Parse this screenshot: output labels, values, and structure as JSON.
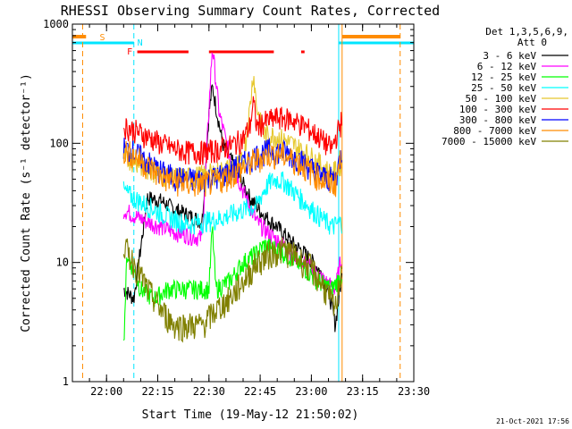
{
  "chart_data": {
    "type": "line",
    "title": "RHESSI Observing Summary Count Rates, Corrected",
    "xlabel": "Start Time (19-May-12 21:50:02)",
    "ylabel": "Corrected Count Rate (s⁻¹ detector⁻¹)",
    "y_scale": "log",
    "ylim": [
      1,
      1000
    ],
    "xlim": [
      "21:50",
      "23:30"
    ],
    "x_ticks": [
      "22:00",
      "22:15",
      "22:30",
      "22:45",
      "23:00",
      "23:15",
      "23:30"
    ],
    "y_ticks": [
      "1",
      "10",
      "100",
      "1000"
    ],
    "grid": false,
    "legend_title": [
      "Det 1,3,5,6,9,",
      "Att 0"
    ],
    "legend_position": "right",
    "footer": "21-Oct-2021 17:56",
    "markers": {
      "S": {
        "label": "S",
        "color": "#ff8c00"
      },
      "N": {
        "label": "N",
        "color": "#00e5ff"
      },
      "F": {
        "label": "F",
        "color": "#ff0000"
      }
    },
    "flag_bars": {
      "saa": {
        "color": "#ff8c00",
        "segments": [
          [
            "21:50",
            "21:54"
          ],
          [
            "23:09",
            "23:26"
          ]
        ]
      },
      "night": {
        "color": "#00e5ff",
        "segments": [
          [
            "21:50",
            "22:08"
          ],
          [
            "23:08",
            "23:30"
          ]
        ]
      },
      "flare": {
        "color": "#ff0000",
        "segments": [
          [
            "22:09",
            "22:24"
          ],
          [
            "22:30",
            "22:49"
          ],
          [
            "22:57",
            "22:58"
          ]
        ]
      }
    },
    "vertical_lines": [
      {
        "time": "21:53",
        "color": "#ff8c00",
        "style": "dashed"
      },
      {
        "time": "22:08",
        "color": "#00e5ff",
        "style": "dashed"
      },
      {
        "time": "23:08",
        "color": "#00e5ff",
        "style": "solid"
      },
      {
        "time": "23:09",
        "color": "#ff8c00",
        "style": "solid"
      },
      {
        "time": "23:26",
        "color": "#ff8c00",
        "style": "dashed"
      }
    ],
    "series": [
      {
        "name": "3 - 6 keV",
        "color": "#000000",
        "x": [
          "22:05",
          "22:08",
          "22:12",
          "22:16",
          "22:20",
          "22:24",
          "22:28",
          "22:30",
          "22:31",
          "22:34",
          "22:38",
          "22:42",
          "22:46",
          "22:50",
          "22:54",
          "22:58",
          "23:02",
          "23:05",
          "23:07",
          "23:09"
        ],
        "y": [
          6,
          5,
          35,
          33,
          28,
          25,
          22,
          180,
          300,
          100,
          60,
          35,
          25,
          20,
          15,
          12,
          9,
          6,
          3,
          8
        ]
      },
      {
        "name": "6 - 12 keV",
        "color": "#ff00ff",
        "x": [
          "22:05",
          "22:08",
          "22:12",
          "22:16",
          "22:20",
          "22:24",
          "22:28",
          "22:30",
          "22:31",
          "22:33",
          "22:36",
          "22:40",
          "22:44",
          "22:48",
          "22:52",
          "22:56",
          "23:00",
          "23:04",
          "23:07",
          "23:09"
        ],
        "y": [
          28,
          25,
          22,
          20,
          18,
          17,
          16,
          200,
          650,
          180,
          80,
          40,
          22,
          17,
          14,
          11,
          9,
          7,
          6,
          12
        ]
      },
      {
        "name": "12 - 25 keV",
        "color": "#00ff00",
        "x": [
          "22:05",
          "22:06",
          "22:10",
          "22:14",
          "22:18",
          "22:22",
          "22:26",
          "22:30",
          "22:31",
          "22:32",
          "22:36",
          "22:40",
          "22:44",
          "22:46",
          "22:50",
          "22:54",
          "22:58",
          "23:02",
          "23:06",
          "23:09"
        ],
        "y": [
          2,
          12,
          6,
          5,
          6,
          6,
          6,
          6,
          20,
          6,
          7,
          10,
          12,
          14,
          13,
          11,
          9,
          7,
          6,
          8
        ]
      },
      {
        "name": "25 - 50 keV",
        "color": "#00ffff",
        "x": [
          "22:05",
          "22:08",
          "22:12",
          "22:16",
          "22:20",
          "22:24",
          "22:28",
          "22:32",
          "22:36",
          "22:40",
          "22:44",
          "22:46",
          "22:48",
          "22:50",
          "22:52",
          "22:54",
          "22:58",
          "23:02",
          "23:06",
          "23:09"
        ],
        "y": [
          40,
          35,
          30,
          26,
          23,
          21,
          22,
          23,
          25,
          28,
          30,
          40,
          48,
          50,
          48,
          42,
          32,
          25,
          20,
          22
        ]
      },
      {
        "name": "50 - 100 keV",
        "color": "#e6c82e",
        "x": [
          "22:05",
          "22:08",
          "22:12",
          "22:16",
          "22:20",
          "22:24",
          "22:28",
          "22:32",
          "22:36",
          "22:40",
          "22:42",
          "22:43",
          "22:44",
          "22:46",
          "22:50",
          "22:54",
          "22:58",
          "23:02",
          "23:06",
          "23:09"
        ],
        "y": [
          80,
          70,
          62,
          55,
          52,
          52,
          54,
          57,
          62,
          70,
          200,
          400,
          200,
          120,
          115,
          100,
          85,
          70,
          55,
          70
        ]
      },
      {
        "name": "100 - 300 keV",
        "color": "#ff0000",
        "x": [
          "22:05",
          "22:08",
          "22:12",
          "22:16",
          "22:20",
          "22:24",
          "22:28",
          "22:32",
          "22:36",
          "22:40",
          "22:42",
          "22:43",
          "22:44",
          "22:46",
          "22:50",
          "22:54",
          "22:58",
          "23:02",
          "23:06",
          "23:09"
        ],
        "y": [
          140,
          130,
          115,
          100,
          90,
          85,
          85,
          88,
          95,
          110,
          140,
          220,
          140,
          150,
          165,
          160,
          140,
          115,
          90,
          160
        ]
      },
      {
        "name": "300 - 800 keV",
        "color": "#0000ff",
        "x": [
          "22:05",
          "22:08",
          "22:12",
          "22:16",
          "22:20",
          "22:24",
          "22:28",
          "22:32",
          "22:36",
          "22:40",
          "22:44",
          "22:48",
          "22:52",
          "22:56",
          "23:00",
          "23:04",
          "23:07",
          "23:09"
        ],
        "y": [
          92,
          85,
          70,
          58,
          52,
          50,
          50,
          52,
          58,
          68,
          80,
          88,
          85,
          75,
          62,
          52,
          50,
          90
        ]
      },
      {
        "name": "800 - 7000 keV",
        "color": "#ff8c00",
        "x": [
          "22:05",
          "22:08",
          "22:12",
          "22:16",
          "22:20",
          "22:24",
          "22:28",
          "22:32",
          "22:36",
          "22:40",
          "22:44",
          "22:48",
          "22:52",
          "22:56",
          "23:00",
          "23:04",
          "23:07",
          "23:09"
        ],
        "y": [
          88,
          80,
          65,
          53,
          48,
          46,
          46,
          48,
          54,
          62,
          74,
          82,
          80,
          70,
          58,
          48,
          46,
          85
        ]
      },
      {
        "name": "7000 - 15000 keV",
        "color": "#808000",
        "x": [
          "22:05",
          "22:08",
          "22:12",
          "22:16",
          "22:20",
          "22:24",
          "22:28",
          "22:32",
          "22:36",
          "22:40",
          "22:44",
          "22:48",
          "22:52",
          "22:56",
          "23:00",
          "23:04",
          "23:07",
          "23:09"
        ],
        "y": [
          14,
          10,
          6,
          4,
          3,
          3,
          3,
          4,
          5,
          7,
          10,
          12,
          13,
          11,
          9,
          6,
          4,
          10
        ]
      }
    ]
  }
}
